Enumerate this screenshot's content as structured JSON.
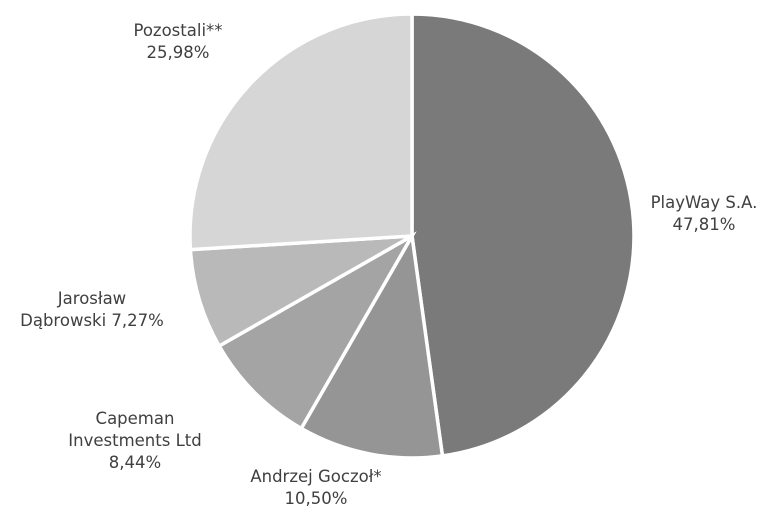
{
  "chart_data": {
    "type": "pie",
    "start_angle_deg": 0,
    "direction": "clockwise",
    "legend": "none",
    "slices": [
      {
        "label_lines": [
          "PlayWay S.A.",
          "47,81%"
        ],
        "value": 47.81,
        "color": "#7a7a7a"
      },
      {
        "label_lines": [
          "Andrzej Goczoł*",
          "10,50%"
        ],
        "value": 10.5,
        "color": "#959595"
      },
      {
        "label_lines": [
          "Capeman",
          "Investments Ltd",
          "8,44%"
        ],
        "value": 8.44,
        "color": "#a4a4a4"
      },
      {
        "label_lines": [
          "Jarosław",
          "Dąbrowski 7,27%"
        ],
        "value": 7.27,
        "color": "#b9b9b9"
      },
      {
        "label_lines": [
          "Pozostali**",
          "25,98%"
        ],
        "value": 25.98,
        "color": "#d6d6d6"
      }
    ]
  }
}
